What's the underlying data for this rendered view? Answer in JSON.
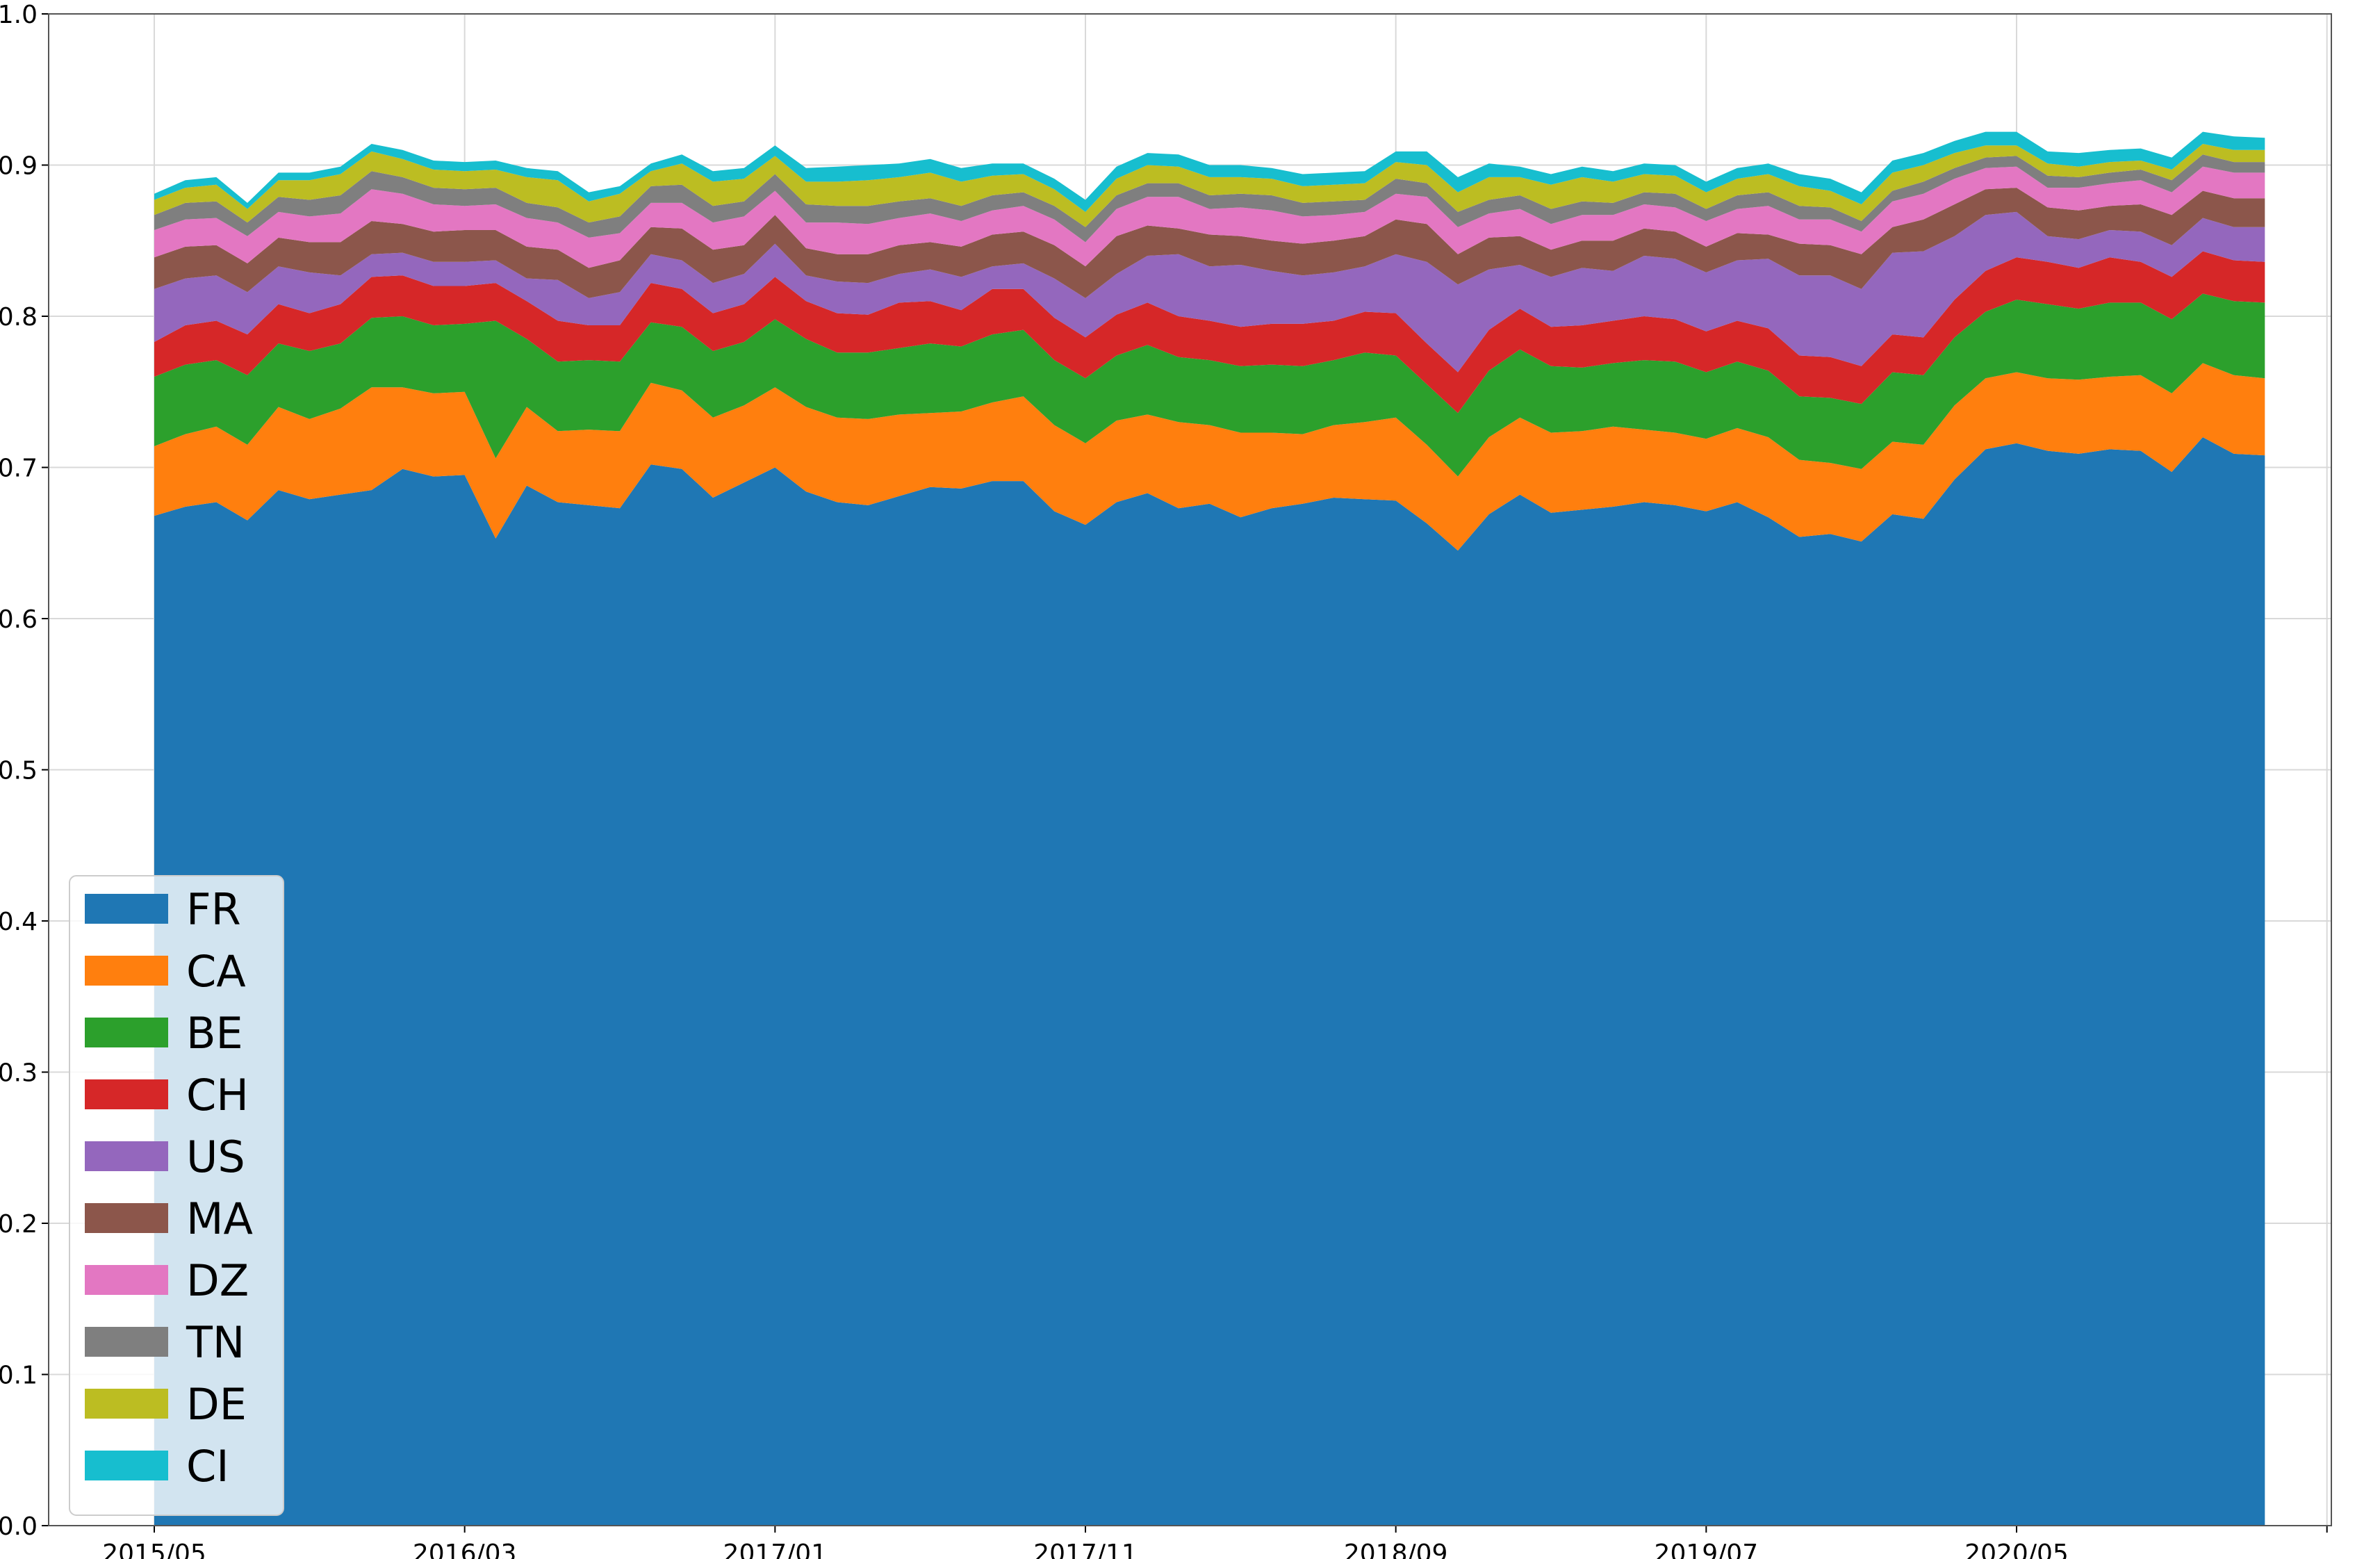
{
  "chart_data": {
    "type": "area",
    "stacked": true,
    "title": "",
    "xlabel": "",
    "ylabel": "",
    "ylim": [
      0,
      1
    ],
    "grid": true,
    "legend_position": "lower-left",
    "x_start": "2015/05",
    "x_end": "2021/06",
    "x_ticks": [
      "2015/05",
      "2016/03",
      "2017/01",
      "2017/11",
      "2018/09",
      "2019/07",
      "2020/05"
    ],
    "y_ticks": [
      "0.0",
      "0.1",
      "0.2",
      "0.3",
      "0.4",
      "0.5",
      "0.6",
      "0.7",
      "0.8",
      "0.9",
      "1.0"
    ],
    "series": [
      {
        "name": "FR",
        "color": "#1f77b4",
        "values": [
          0.668,
          0.674,
          0.677,
          0.665,
          0.685,
          0.679,
          0.682,
          0.685,
          0.699,
          0.694,
          0.695,
          0.653,
          0.688,
          0.677,
          0.675,
          0.673,
          0.702,
          0.699,
          0.68,
          0.69,
          0.7,
          0.684,
          0.677,
          0.675,
          0.681,
          0.687,
          0.686,
          0.691,
          0.691,
          0.671,
          0.662,
          0.677,
          0.683,
          0.673,
          0.676,
          0.667,
          0.673,
          0.676,
          0.68,
          0.679,
          0.678,
          0.663,
          0.645,
          0.669,
          0.682,
          0.67,
          0.672,
          0.674,
          0.677,
          0.675,
          0.671,
          0.677,
          0.667,
          0.654,
          0.656,
          0.651,
          0.669,
          0.666,
          0.692,
          0.712,
          0.716,
          0.711,
          0.709,
          0.712,
          0.711,
          0.697,
          0.72,
          0.709,
          0.708
        ]
      },
      {
        "name": "CA",
        "color": "#ff7f0e",
        "values": [
          0.046,
          0.048,
          0.05,
          0.05,
          0.055,
          0.053,
          0.057,
          0.068,
          0.054,
          0.055,
          0.055,
          0.053,
          0.052,
          0.047,
          0.05,
          0.051,
          0.054,
          0.052,
          0.053,
          0.051,
          0.053,
          0.056,
          0.056,
          0.057,
          0.054,
          0.049,
          0.051,
          0.052,
          0.056,
          0.057,
          0.054,
          0.054,
          0.052,
          0.057,
          0.052,
          0.056,
          0.05,
          0.046,
          0.048,
          0.051,
          0.055,
          0.052,
          0.049,
          0.051,
          0.051,
          0.053,
          0.052,
          0.053,
          0.048,
          0.048,
          0.048,
          0.049,
          0.053,
          0.051,
          0.047,
          0.048,
          0.048,
          0.049,
          0.049,
          0.047,
          0.047,
          0.048,
          0.049,
          0.048,
          0.05,
          0.052,
          0.049,
          0.052,
          0.051
        ]
      },
      {
        "name": "BE",
        "color": "#2ca02c",
        "values": [
          0.046,
          0.046,
          0.044,
          0.046,
          0.042,
          0.045,
          0.043,
          0.046,
          0.047,
          0.045,
          0.045,
          0.091,
          0.045,
          0.046,
          0.046,
          0.046,
          0.04,
          0.042,
          0.044,
          0.042,
          0.045,
          0.045,
          0.043,
          0.044,
          0.044,
          0.046,
          0.043,
          0.045,
          0.044,
          0.043,
          0.043,
          0.043,
          0.046,
          0.043,
          0.043,
          0.044,
          0.045,
          0.045,
          0.043,
          0.046,
          0.041,
          0.04,
          0.042,
          0.044,
          0.045,
          0.044,
          0.042,
          0.042,
          0.046,
          0.047,
          0.044,
          0.044,
          0.044,
          0.042,
          0.043,
          0.043,
          0.046,
          0.046,
          0.045,
          0.044,
          0.048,
          0.049,
          0.047,
          0.049,
          0.048,
          0.049,
          0.046,
          0.049,
          0.05
        ]
      },
      {
        "name": "CH",
        "color": "#d62728",
        "values": [
          0.023,
          0.026,
          0.026,
          0.027,
          0.026,
          0.025,
          0.026,
          0.027,
          0.027,
          0.026,
          0.025,
          0.025,
          0.025,
          0.027,
          0.023,
          0.024,
          0.026,
          0.025,
          0.025,
          0.025,
          0.028,
          0.025,
          0.026,
          0.025,
          0.03,
          0.028,
          0.024,
          0.03,
          0.027,
          0.028,
          0.027,
          0.027,
          0.028,
          0.027,
          0.026,
          0.026,
          0.027,
          0.028,
          0.026,
          0.027,
          0.028,
          0.027,
          0.027,
          0.027,
          0.027,
          0.026,
          0.028,
          0.028,
          0.029,
          0.028,
          0.027,
          0.027,
          0.028,
          0.027,
          0.027,
          0.025,
          0.025,
          0.025,
          0.025,
          0.027,
          0.028,
          0.028,
          0.027,
          0.03,
          0.027,
          0.028,
          0.028,
          0.027,
          0.027
        ]
      },
      {
        "name": "US",
        "color": "#9467bd",
        "values": [
          0.035,
          0.031,
          0.03,
          0.028,
          0.025,
          0.027,
          0.019,
          0.015,
          0.015,
          0.016,
          0.016,
          0.015,
          0.015,
          0.027,
          0.018,
          0.022,
          0.019,
          0.019,
          0.02,
          0.02,
          0.022,
          0.017,
          0.021,
          0.021,
          0.019,
          0.021,
          0.022,
          0.015,
          0.017,
          0.026,
          0.026,
          0.027,
          0.031,
          0.041,
          0.036,
          0.041,
          0.035,
          0.032,
          0.032,
          0.03,
          0.039,
          0.054,
          0.058,
          0.04,
          0.029,
          0.033,
          0.038,
          0.033,
          0.04,
          0.04,
          0.039,
          0.04,
          0.046,
          0.053,
          0.054,
          0.051,
          0.054,
          0.057,
          0.042,
          0.037,
          0.03,
          0.017,
          0.019,
          0.018,
          0.02,
          0.021,
          0.022,
          0.022,
          0.023
        ]
      },
      {
        "name": "MA",
        "color": "#8c564b",
        "values": [
          0.021,
          0.021,
          0.02,
          0.019,
          0.019,
          0.02,
          0.022,
          0.022,
          0.019,
          0.02,
          0.021,
          0.02,
          0.021,
          0.02,
          0.02,
          0.021,
          0.018,
          0.021,
          0.022,
          0.019,
          0.019,
          0.018,
          0.018,
          0.019,
          0.019,
          0.018,
          0.02,
          0.021,
          0.021,
          0.022,
          0.021,
          0.025,
          0.02,
          0.017,
          0.021,
          0.019,
          0.02,
          0.021,
          0.021,
          0.02,
          0.023,
          0.025,
          0.02,
          0.021,
          0.019,
          0.018,
          0.018,
          0.02,
          0.018,
          0.018,
          0.017,
          0.018,
          0.016,
          0.021,
          0.02,
          0.023,
          0.017,
          0.021,
          0.021,
          0.017,
          0.016,
          0.019,
          0.019,
          0.016,
          0.018,
          0.02,
          0.018,
          0.019,
          0.019
        ]
      },
      {
        "name": "DZ",
        "color": "#e377c2",
        "values": [
          0.018,
          0.018,
          0.018,
          0.018,
          0.017,
          0.017,
          0.019,
          0.021,
          0.02,
          0.018,
          0.016,
          0.017,
          0.019,
          0.018,
          0.02,
          0.018,
          0.016,
          0.017,
          0.018,
          0.019,
          0.016,
          0.017,
          0.021,
          0.02,
          0.018,
          0.019,
          0.017,
          0.016,
          0.017,
          0.017,
          0.016,
          0.018,
          0.019,
          0.021,
          0.017,
          0.019,
          0.02,
          0.018,
          0.017,
          0.016,
          0.017,
          0.018,
          0.018,
          0.016,
          0.018,
          0.017,
          0.017,
          0.017,
          0.016,
          0.016,
          0.017,
          0.016,
          0.019,
          0.016,
          0.017,
          0.015,
          0.017,
          0.017,
          0.017,
          0.014,
          0.014,
          0.013,
          0.015,
          0.015,
          0.016,
          0.015,
          0.016,
          0.017,
          0.017
        ]
      },
      {
        "name": "TN",
        "color": "#7f7f7f",
        "values": [
          0.01,
          0.011,
          0.011,
          0.009,
          0.01,
          0.011,
          0.012,
          0.012,
          0.011,
          0.011,
          0.011,
          0.011,
          0.01,
          0.01,
          0.01,
          0.011,
          0.011,
          0.012,
          0.011,
          0.01,
          0.011,
          0.012,
          0.011,
          0.012,
          0.011,
          0.01,
          0.01,
          0.01,
          0.009,
          0.009,
          0.01,
          0.009,
          0.009,
          0.009,
          0.009,
          0.009,
          0.01,
          0.009,
          0.009,
          0.008,
          0.01,
          0.009,
          0.01,
          0.009,
          0.009,
          0.01,
          0.009,
          0.008,
          0.008,
          0.009,
          0.008,
          0.009,
          0.009,
          0.009,
          0.008,
          0.007,
          0.007,
          0.008,
          0.007,
          0.007,
          0.007,
          0.008,
          0.007,
          0.007,
          0.007,
          0.008,
          0.008,
          0.007,
          0.007
        ]
      },
      {
        "name": "DE",
        "color": "#bcbd22",
        "values": [
          0.01,
          0.01,
          0.011,
          0.009,
          0.011,
          0.013,
          0.014,
          0.013,
          0.012,
          0.012,
          0.012,
          0.012,
          0.017,
          0.018,
          0.014,
          0.015,
          0.01,
          0.014,
          0.016,
          0.015,
          0.012,
          0.015,
          0.016,
          0.017,
          0.016,
          0.017,
          0.016,
          0.013,
          0.012,
          0.011,
          0.01,
          0.011,
          0.012,
          0.011,
          0.012,
          0.011,
          0.011,
          0.011,
          0.011,
          0.011,
          0.011,
          0.012,
          0.013,
          0.015,
          0.012,
          0.016,
          0.016,
          0.014,
          0.012,
          0.012,
          0.011,
          0.011,
          0.012,
          0.013,
          0.011,
          0.011,
          0.012,
          0.011,
          0.01,
          0.008,
          0.007,
          0.008,
          0.007,
          0.007,
          0.006,
          0.007,
          0.007,
          0.008,
          0.008
        ]
      },
      {
        "name": "CI",
        "color": "#17becf",
        "values": [
          0.004,
          0.005,
          0.005,
          0.004,
          0.005,
          0.005,
          0.005,
          0.005,
          0.006,
          0.006,
          0.006,
          0.006,
          0.006,
          0.006,
          0.006,
          0.005,
          0.005,
          0.006,
          0.007,
          0.007,
          0.007,
          0.009,
          0.01,
          0.01,
          0.009,
          0.009,
          0.009,
          0.008,
          0.007,
          0.007,
          0.008,
          0.008,
          0.008,
          0.008,
          0.008,
          0.008,
          0.007,
          0.008,
          0.008,
          0.008,
          0.007,
          0.009,
          0.01,
          0.009,
          0.007,
          0.007,
          0.007,
          0.007,
          0.007,
          0.007,
          0.007,
          0.007,
          0.007,
          0.008,
          0.008,
          0.008,
          0.008,
          0.008,
          0.008,
          0.009,
          0.009,
          0.008,
          0.009,
          0.008,
          0.008,
          0.008,
          0.008,
          0.009,
          0.008
        ]
      }
    ]
  }
}
